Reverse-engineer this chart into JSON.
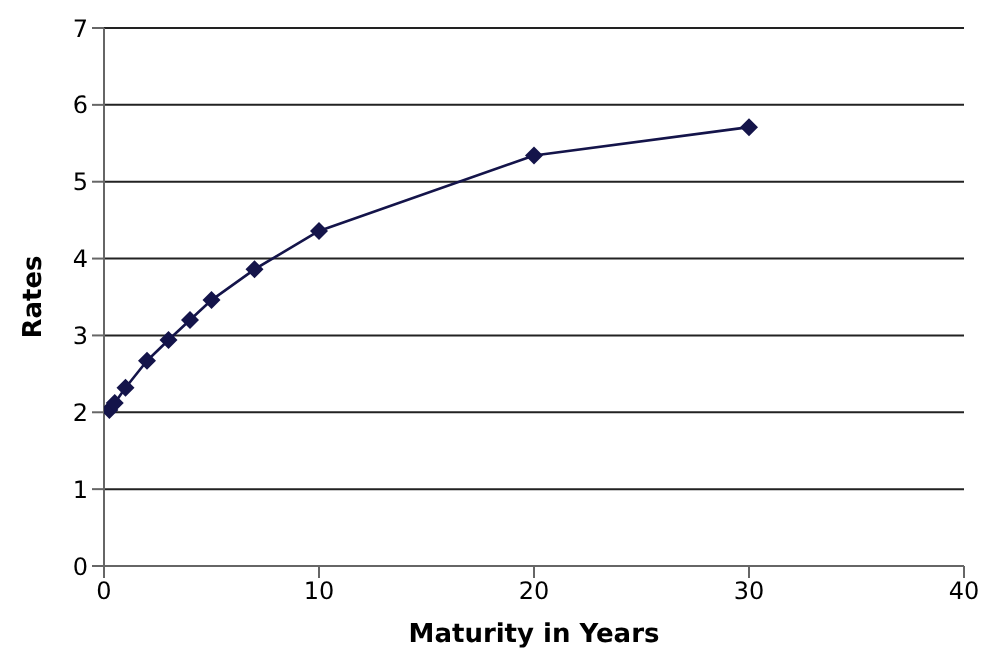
{
  "chart_data": {
    "type": "line",
    "xlabel": "Maturity in Years",
    "ylabel": "Rates",
    "x": [
      0.25,
      0.5,
      1,
      2,
      3,
      4,
      5,
      7,
      10,
      20,
      30
    ],
    "values": [
      2.03,
      2.12,
      2.32,
      2.67,
      2.94,
      3.2,
      3.46,
      3.86,
      4.36,
      5.34,
      5.71
    ],
    "color": "#14144a",
    "marker": "diamond",
    "line_style": "solid",
    "xlim": [
      0,
      40
    ],
    "xticks": [
      0,
      10,
      20,
      30,
      40
    ],
    "ylim": [
      0,
      7
    ],
    "yticks": [
      0,
      1,
      2,
      3,
      4,
      5,
      6,
      7
    ],
    "grid": "y",
    "legend": false
  }
}
